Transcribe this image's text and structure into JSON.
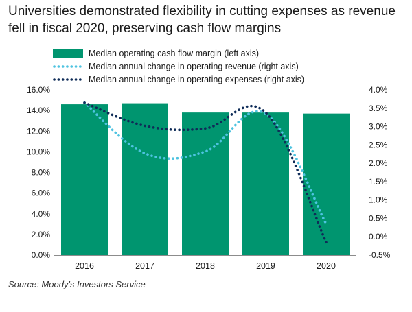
{
  "title": "Universities demonstrated flexibility in cutting expenses as revenue fell in fiscal 2020, preserving cash flow margins",
  "source": "Source: Moody's Investors Service",
  "colors": {
    "bar": "#00956f",
    "revenue": "#4ec3e0",
    "expenses": "#0f2c58",
    "axis": "#8c8c8c",
    "text": "#1a1a1a"
  },
  "chart_data": {
    "type": "bar+line",
    "categories": [
      "2016",
      "2017",
      "2018",
      "2019",
      "2020"
    ],
    "series": [
      {
        "name": "Median operating cash flow margin (left axis)",
        "axis": "left",
        "kind": "bar",
        "values": [
          14.6,
          14.7,
          13.8,
          13.8,
          13.7
        ]
      },
      {
        "name": "Median annual change in operating revenue (right axis)",
        "axis": "right",
        "kind": "dotted-line",
        "values": [
          3.65,
          2.27,
          2.32,
          3.35,
          0.35
        ]
      },
      {
        "name": "Median annual change in operating expenses (right axis)",
        "axis": "right",
        "kind": "dotted-line",
        "values": [
          3.65,
          3.02,
          2.95,
          3.38,
          -0.15
        ]
      }
    ],
    "left_axis": {
      "min": 0,
      "max": 16,
      "step": 2,
      "ticks": [
        "0.0%",
        "2.0%",
        "4.0%",
        "6.0%",
        "8.0%",
        "10.0%",
        "12.0%",
        "14.0%",
        "16.0%"
      ]
    },
    "right_axis": {
      "min": -0.5,
      "max": 4.0,
      "step": 0.5,
      "ticks": [
        "-0.5%",
        "0.0%",
        "0.5%",
        "1.0%",
        "1.5%",
        "2.0%",
        "2.5%",
        "3.0%",
        "3.5%",
        "4.0%"
      ]
    }
  }
}
